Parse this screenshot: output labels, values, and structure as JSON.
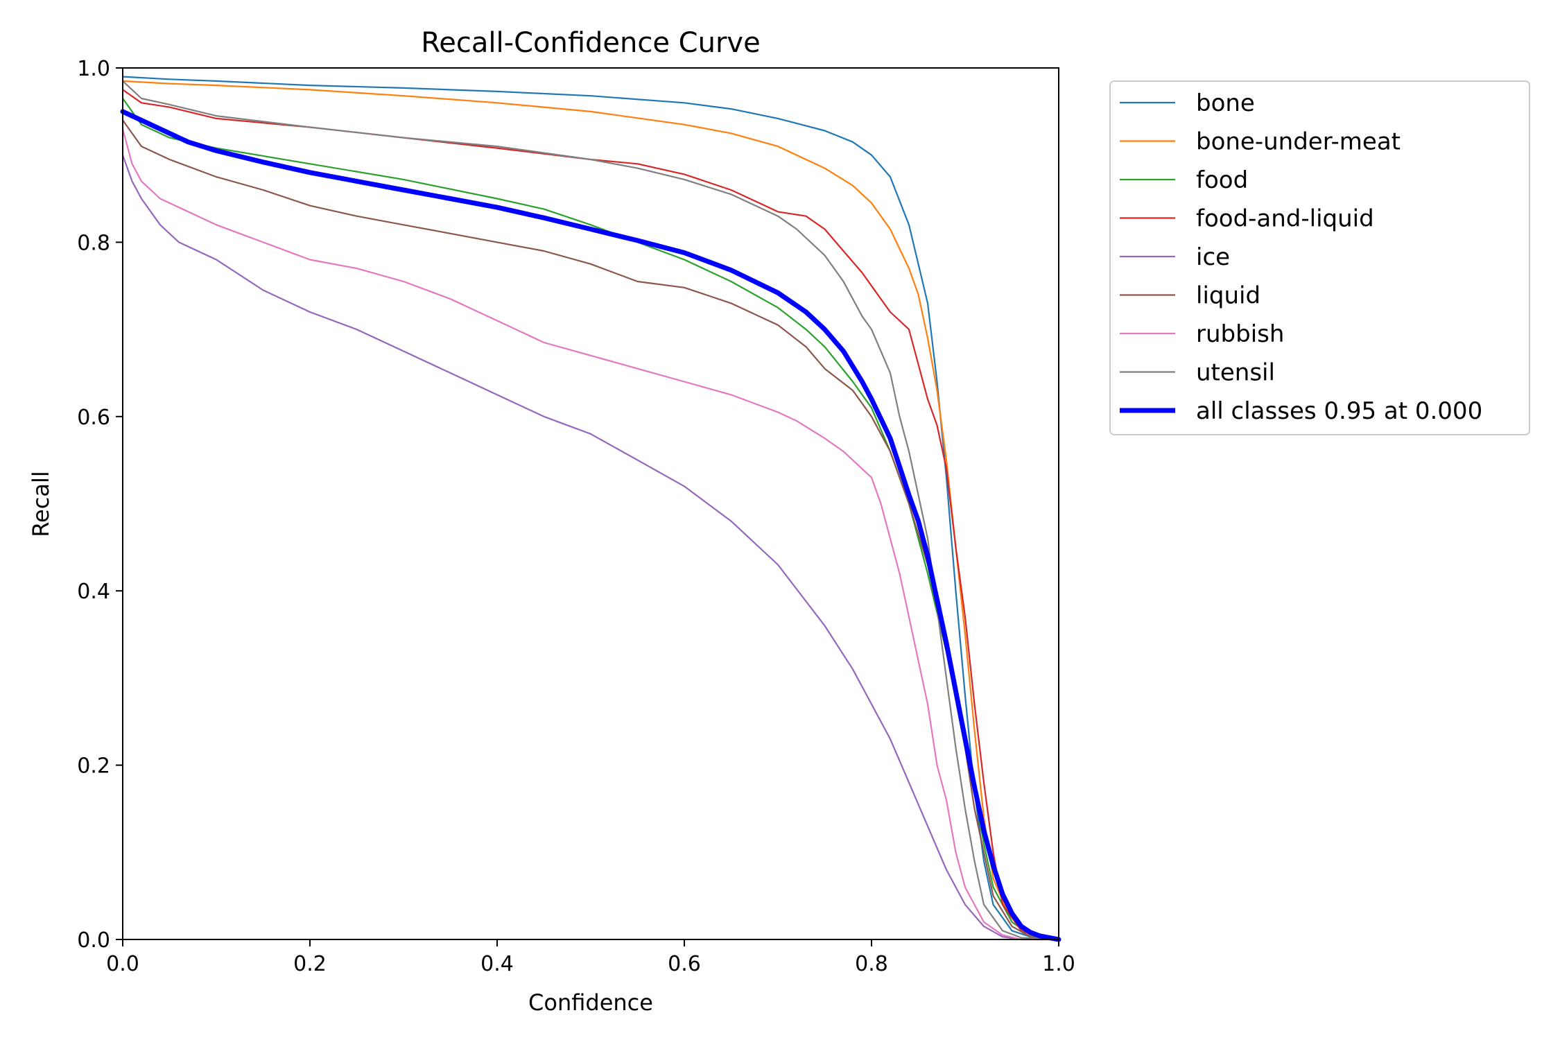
{
  "chart_data": {
    "type": "line",
    "title": "Recall-Confidence Curve",
    "xlabel": "Confidence",
    "ylabel": "Recall",
    "xlim": [
      0,
      1
    ],
    "ylim": [
      0,
      1
    ],
    "xticks": [
      "0.0",
      "0.2",
      "0.4",
      "0.6",
      "0.8",
      "1.0"
    ],
    "yticks": [
      "0.0",
      "0.2",
      "0.4",
      "0.6",
      "0.8",
      "1.0"
    ],
    "grid": false,
    "legend_position": "outside-top-right",
    "series": [
      {
        "name": "bone",
        "color": "#1f77b4",
        "width": 2.2,
        "points": [
          [
            0,
            0.99
          ],
          [
            0.05,
            0.987
          ],
          [
            0.1,
            0.985
          ],
          [
            0.2,
            0.98
          ],
          [
            0.3,
            0.977
          ],
          [
            0.4,
            0.973
          ],
          [
            0.5,
            0.968
          ],
          [
            0.6,
            0.96
          ],
          [
            0.65,
            0.953
          ],
          [
            0.7,
            0.942
          ],
          [
            0.75,
            0.928
          ],
          [
            0.78,
            0.915
          ],
          [
            0.8,
            0.9
          ],
          [
            0.82,
            0.875
          ],
          [
            0.84,
            0.82
          ],
          [
            0.86,
            0.73
          ],
          [
            0.87,
            0.64
          ],
          [
            0.88,
            0.53
          ],
          [
            0.89,
            0.4
          ],
          [
            0.9,
            0.28
          ],
          [
            0.91,
            0.17
          ],
          [
            0.92,
            0.09
          ],
          [
            0.93,
            0.04
          ],
          [
            0.95,
            0.01
          ],
          [
            0.97,
            0.003
          ],
          [
            1,
            0
          ]
        ]
      },
      {
        "name": "bone-under-meat",
        "color": "#ff7f0e",
        "width": 2.2,
        "points": [
          [
            0,
            0.985
          ],
          [
            0.05,
            0.982
          ],
          [
            0.1,
            0.98
          ],
          [
            0.2,
            0.975
          ],
          [
            0.3,
            0.968
          ],
          [
            0.4,
            0.96
          ],
          [
            0.5,
            0.95
          ],
          [
            0.6,
            0.935
          ],
          [
            0.65,
            0.925
          ],
          [
            0.7,
            0.91
          ],
          [
            0.75,
            0.885
          ],
          [
            0.78,
            0.865
          ],
          [
            0.8,
            0.845
          ],
          [
            0.82,
            0.815
          ],
          [
            0.84,
            0.77
          ],
          [
            0.85,
            0.74
          ],
          [
            0.86,
            0.69
          ],
          [
            0.87,
            0.63
          ],
          [
            0.88,
            0.55
          ],
          [
            0.89,
            0.45
          ],
          [
            0.9,
            0.35
          ],
          [
            0.91,
            0.24
          ],
          [
            0.92,
            0.14
          ],
          [
            0.93,
            0.07
          ],
          [
            0.95,
            0.02
          ],
          [
            0.97,
            0.005
          ],
          [
            1,
            0
          ]
        ]
      },
      {
        "name": "food",
        "color": "#2ca02c",
        "width": 2.2,
        "points": [
          [
            0,
            0.965
          ],
          [
            0.02,
            0.935
          ],
          [
            0.05,
            0.92
          ],
          [
            0.1,
            0.908
          ],
          [
            0.2,
            0.89
          ],
          [
            0.3,
            0.872
          ],
          [
            0.4,
            0.85
          ],
          [
            0.45,
            0.838
          ],
          [
            0.5,
            0.82
          ],
          [
            0.55,
            0.8
          ],
          [
            0.6,
            0.78
          ],
          [
            0.65,
            0.755
          ],
          [
            0.7,
            0.725
          ],
          [
            0.73,
            0.7
          ],
          [
            0.75,
            0.68
          ],
          [
            0.78,
            0.64
          ],
          [
            0.8,
            0.61
          ],
          [
            0.82,
            0.56
          ],
          [
            0.84,
            0.5
          ],
          [
            0.86,
            0.42
          ],
          [
            0.88,
            0.33
          ],
          [
            0.9,
            0.23
          ],
          [
            0.91,
            0.17
          ],
          [
            0.92,
            0.11
          ],
          [
            0.93,
            0.06
          ],
          [
            0.95,
            0.02
          ],
          [
            0.97,
            0.005
          ],
          [
            1,
            0
          ]
        ]
      },
      {
        "name": "food-and-liquid",
        "color": "#d62728",
        "width": 2.2,
        "points": [
          [
            0,
            0.975
          ],
          [
            0.02,
            0.96
          ],
          [
            0.05,
            0.955
          ],
          [
            0.1,
            0.942
          ],
          [
            0.2,
            0.932
          ],
          [
            0.3,
            0.92
          ],
          [
            0.4,
            0.908
          ],
          [
            0.5,
            0.895
          ],
          [
            0.55,
            0.89
          ],
          [
            0.6,
            0.878
          ],
          [
            0.65,
            0.86
          ],
          [
            0.68,
            0.845
          ],
          [
            0.7,
            0.835
          ],
          [
            0.73,
            0.83
          ],
          [
            0.75,
            0.815
          ],
          [
            0.77,
            0.79
          ],
          [
            0.79,
            0.765
          ],
          [
            0.8,
            0.75
          ],
          [
            0.82,
            0.72
          ],
          [
            0.83,
            0.71
          ],
          [
            0.84,
            0.7
          ],
          [
            0.85,
            0.66
          ],
          [
            0.86,
            0.62
          ],
          [
            0.87,
            0.59
          ],
          [
            0.88,
            0.54
          ],
          [
            0.89,
            0.45
          ],
          [
            0.9,
            0.37
          ],
          [
            0.91,
            0.27
          ],
          [
            0.92,
            0.18
          ],
          [
            0.93,
            0.1
          ],
          [
            0.94,
            0.04
          ],
          [
            0.96,
            0.01
          ],
          [
            0.98,
            0.002
          ],
          [
            1,
            0
          ]
        ]
      },
      {
        "name": "ice",
        "color": "#9467bd",
        "width": 2.2,
        "points": [
          [
            0,
            0.9
          ],
          [
            0.01,
            0.87
          ],
          [
            0.02,
            0.85
          ],
          [
            0.04,
            0.82
          ],
          [
            0.06,
            0.8
          ],
          [
            0.1,
            0.78
          ],
          [
            0.15,
            0.745
          ],
          [
            0.2,
            0.72
          ],
          [
            0.25,
            0.7
          ],
          [
            0.3,
            0.675
          ],
          [
            0.35,
            0.65
          ],
          [
            0.4,
            0.625
          ],
          [
            0.45,
            0.6
          ],
          [
            0.5,
            0.58
          ],
          [
            0.55,
            0.55
          ],
          [
            0.6,
            0.52
          ],
          [
            0.65,
            0.48
          ],
          [
            0.7,
            0.43
          ],
          [
            0.75,
            0.36
          ],
          [
            0.78,
            0.31
          ],
          [
            0.8,
            0.27
          ],
          [
            0.82,
            0.23
          ],
          [
            0.84,
            0.18
          ],
          [
            0.86,
            0.13
          ],
          [
            0.88,
            0.08
          ],
          [
            0.9,
            0.04
          ],
          [
            0.92,
            0.015
          ],
          [
            0.94,
            0.003
          ],
          [
            0.96,
            0
          ],
          [
            1,
            0
          ]
        ]
      },
      {
        "name": "liquid",
        "color": "#8c564b",
        "width": 2.2,
        "points": [
          [
            0,
            0.94
          ],
          [
            0.02,
            0.91
          ],
          [
            0.05,
            0.895
          ],
          [
            0.1,
            0.875
          ],
          [
            0.15,
            0.86
          ],
          [
            0.2,
            0.842
          ],
          [
            0.25,
            0.83
          ],
          [
            0.3,
            0.82
          ],
          [
            0.35,
            0.81
          ],
          [
            0.4,
            0.8
          ],
          [
            0.45,
            0.79
          ],
          [
            0.5,
            0.775
          ],
          [
            0.55,
            0.755
          ],
          [
            0.6,
            0.748
          ],
          [
            0.65,
            0.73
          ],
          [
            0.68,
            0.715
          ],
          [
            0.7,
            0.705
          ],
          [
            0.73,
            0.68
          ],
          [
            0.75,
            0.655
          ],
          [
            0.78,
            0.63
          ],
          [
            0.8,
            0.6
          ],
          [
            0.82,
            0.56
          ],
          [
            0.84,
            0.5
          ],
          [
            0.86,
            0.43
          ],
          [
            0.88,
            0.33
          ],
          [
            0.9,
            0.22
          ],
          [
            0.91,
            0.15
          ],
          [
            0.92,
            0.1
          ],
          [
            0.93,
            0.05
          ],
          [
            0.95,
            0.015
          ],
          [
            0.97,
            0.003
          ],
          [
            1,
            0
          ]
        ]
      },
      {
        "name": "rubbish",
        "color": "#e377c2",
        "width": 2.2,
        "points": [
          [
            0,
            0.93
          ],
          [
            0.01,
            0.89
          ],
          [
            0.02,
            0.87
          ],
          [
            0.04,
            0.85
          ],
          [
            0.07,
            0.835
          ],
          [
            0.1,
            0.82
          ],
          [
            0.15,
            0.8
          ],
          [
            0.2,
            0.78
          ],
          [
            0.25,
            0.77
          ],
          [
            0.3,
            0.755
          ],
          [
            0.35,
            0.735
          ],
          [
            0.4,
            0.71
          ],
          [
            0.45,
            0.685
          ],
          [
            0.5,
            0.67
          ],
          [
            0.55,
            0.655
          ],
          [
            0.6,
            0.64
          ],
          [
            0.65,
            0.625
          ],
          [
            0.7,
            0.605
          ],
          [
            0.72,
            0.595
          ],
          [
            0.75,
            0.575
          ],
          [
            0.77,
            0.56
          ],
          [
            0.8,
            0.53
          ],
          [
            0.81,
            0.5
          ],
          [
            0.82,
            0.46
          ],
          [
            0.83,
            0.42
          ],
          [
            0.84,
            0.37
          ],
          [
            0.85,
            0.32
          ],
          [
            0.86,
            0.27
          ],
          [
            0.87,
            0.2
          ],
          [
            0.88,
            0.16
          ],
          [
            0.89,
            0.1
          ],
          [
            0.9,
            0.06
          ],
          [
            0.92,
            0.02
          ],
          [
            0.94,
            0.005
          ],
          [
            0.96,
            0
          ],
          [
            1,
            0
          ]
        ]
      },
      {
        "name": "utensil",
        "color": "#7f7f7f",
        "width": 2.2,
        "points": [
          [
            0,
            0.985
          ],
          [
            0.02,
            0.965
          ],
          [
            0.05,
            0.958
          ],
          [
            0.1,
            0.945
          ],
          [
            0.2,
            0.932
          ],
          [
            0.3,
            0.92
          ],
          [
            0.4,
            0.91
          ],
          [
            0.5,
            0.895
          ],
          [
            0.55,
            0.885
          ],
          [
            0.6,
            0.872
          ],
          [
            0.65,
            0.855
          ],
          [
            0.7,
            0.83
          ],
          [
            0.72,
            0.815
          ],
          [
            0.75,
            0.785
          ],
          [
            0.77,
            0.755
          ],
          [
            0.79,
            0.715
          ],
          [
            0.8,
            0.7
          ],
          [
            0.82,
            0.65
          ],
          [
            0.83,
            0.6
          ],
          [
            0.84,
            0.56
          ],
          [
            0.85,
            0.51
          ],
          [
            0.86,
            0.46
          ],
          [
            0.87,
            0.38
          ],
          [
            0.88,
            0.3
          ],
          [
            0.89,
            0.22
          ],
          [
            0.9,
            0.15
          ],
          [
            0.91,
            0.09
          ],
          [
            0.92,
            0.04
          ],
          [
            0.94,
            0.01
          ],
          [
            0.96,
            0.002
          ],
          [
            1,
            0
          ]
        ]
      },
      {
        "name": "all classes 0.95 at 0.000",
        "color": "#0000ff",
        "width": 7,
        "points": [
          [
            0,
            0.95
          ],
          [
            0.02,
            0.94
          ],
          [
            0.05,
            0.925
          ],
          [
            0.07,
            0.915
          ],
          [
            0.1,
            0.905
          ],
          [
            0.15,
            0.892
          ],
          [
            0.2,
            0.88
          ],
          [
            0.25,
            0.87
          ],
          [
            0.3,
            0.86
          ],
          [
            0.35,
            0.85
          ],
          [
            0.4,
            0.84
          ],
          [
            0.45,
            0.828
          ],
          [
            0.5,
            0.815
          ],
          [
            0.55,
            0.802
          ],
          [
            0.6,
            0.788
          ],
          [
            0.65,
            0.768
          ],
          [
            0.7,
            0.742
          ],
          [
            0.73,
            0.72
          ],
          [
            0.75,
            0.7
          ],
          [
            0.77,
            0.675
          ],
          [
            0.79,
            0.64
          ],
          [
            0.8,
            0.62
          ],
          [
            0.82,
            0.575
          ],
          [
            0.84,
            0.51
          ],
          [
            0.85,
            0.48
          ],
          [
            0.86,
            0.44
          ],
          [
            0.87,
            0.39
          ],
          [
            0.88,
            0.34
          ],
          [
            0.89,
            0.285
          ],
          [
            0.9,
            0.23
          ],
          [
            0.91,
            0.175
          ],
          [
            0.92,
            0.125
          ],
          [
            0.93,
            0.085
          ],
          [
            0.94,
            0.052
          ],
          [
            0.95,
            0.03
          ],
          [
            0.96,
            0.015
          ],
          [
            0.97,
            0.008
          ],
          [
            0.98,
            0.004
          ],
          [
            0.99,
            0.002
          ],
          [
            1,
            0
          ]
        ]
      }
    ]
  }
}
